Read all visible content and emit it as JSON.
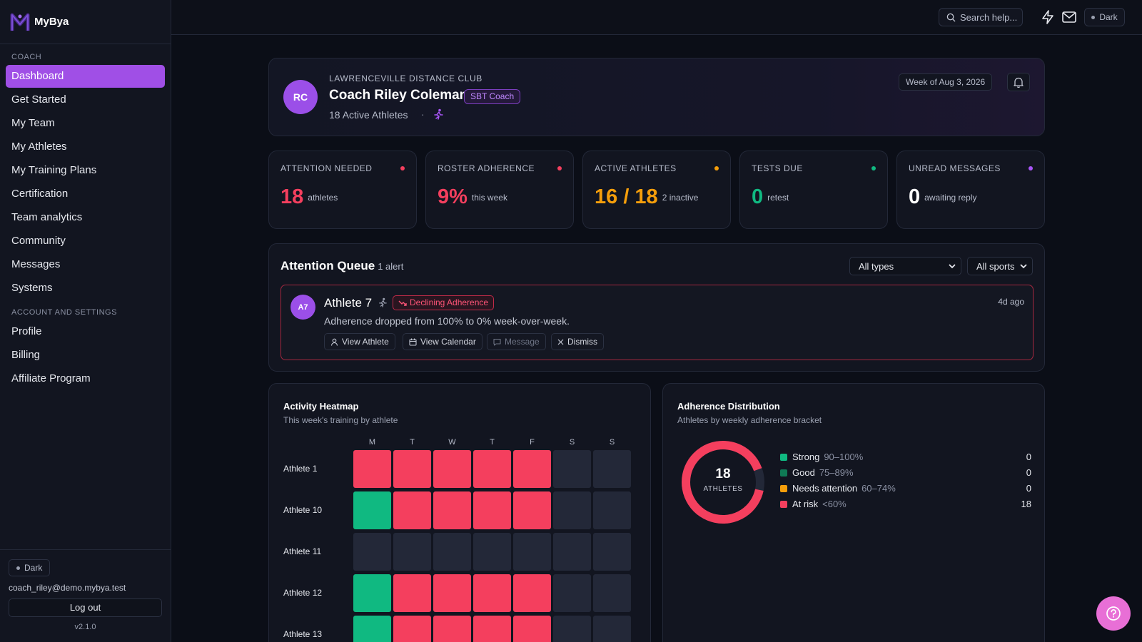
{
  "brand": {
    "name": "MyBya"
  },
  "sidebar": {
    "coach_label": "COACH",
    "coach_items": [
      "Dashboard",
      "Get Started",
      "My Team",
      "My Athletes",
      "My Training Plans",
      "Certification",
      "Team analytics",
      "Community",
      "Messages",
      "Systems"
    ],
    "active_item": "Dashboard",
    "account_label": "ACCOUNT AND SETTINGS",
    "account_items": [
      "Profile",
      "Billing",
      "Affiliate Program"
    ],
    "theme": "Dark",
    "email": "coach_riley@demo.mybya.test",
    "logout_label": "Log out",
    "version": "v2.1.0"
  },
  "topbar": {
    "search_placeholder": "Search help...",
    "theme": "Dark"
  },
  "profile": {
    "initials": "RC",
    "club": "LAWRENCEVILLE DISTANCE CLUB",
    "name": "Coach Riley Coleman",
    "badge": "SBT Coach",
    "active_athletes": "18 Active Athletes",
    "separator": "·",
    "week": "Week of Aug 3, 2026"
  },
  "stats": [
    {
      "label": "ATTENTION NEEDED",
      "value": "18",
      "suffix": "athletes",
      "color": "#f43f5e"
    },
    {
      "label": "ROSTER ADHERENCE",
      "value": "9%",
      "suffix": "this week",
      "color": "#f43f5e"
    },
    {
      "label": "ACTIVE ATHLETES",
      "value": "16 / 18",
      "suffix": "2 inactive",
      "color": "#f59e0b"
    },
    {
      "label": "TESTS DUE",
      "value": "0",
      "suffix": "retest",
      "color": "#10b981"
    },
    {
      "label": "UNREAD MESSAGES",
      "value": "0",
      "suffix": "awaiting reply",
      "color": "#ffffff",
      "dot_color": "#a855f7"
    }
  ],
  "queue": {
    "title": "Attention Queue",
    "count": "1 alert",
    "type_filter": "All types",
    "sport_filter": "All sports",
    "alert": {
      "initials": "A7",
      "name": "Athlete 7",
      "tag": "Declining Adherence",
      "time": "4d ago",
      "description": "Adherence dropped from 100% to 0% week-over-week.",
      "actions": {
        "view_athlete": "View Athlete",
        "view_calendar": "View Calendar",
        "message": "Message",
        "dismiss": "Dismiss"
      }
    }
  },
  "heatmap": {
    "title": "Activity Heatmap",
    "subtitle": "This week's training by athlete",
    "days": [
      "M",
      "T",
      "W",
      "T",
      "F",
      "S",
      "S"
    ],
    "colors": {
      "done": "#10b981",
      "missed": "#f43f5e",
      "none": "#232838"
    },
    "rows": [
      {
        "athlete": "Athlete 1",
        "cells": [
          "missed",
          "missed",
          "missed",
          "missed",
          "missed",
          "none",
          "none"
        ]
      },
      {
        "athlete": "Athlete 10",
        "cells": [
          "done",
          "missed",
          "missed",
          "missed",
          "missed",
          "none",
          "none"
        ]
      },
      {
        "athlete": "Athlete 11",
        "cells": [
          "none",
          "none",
          "none",
          "none",
          "none",
          "none",
          "none"
        ]
      },
      {
        "athlete": "Athlete 12",
        "cells": [
          "done",
          "missed",
          "missed",
          "missed",
          "missed",
          "none",
          "none"
        ]
      },
      {
        "athlete": "Athlete 13",
        "cells": [
          "done",
          "missed",
          "missed",
          "missed",
          "missed",
          "none",
          "none"
        ]
      }
    ]
  },
  "distribution": {
    "title": "Adherence Distribution",
    "subtitle": "Athletes by weekly adherence bracket",
    "total": "18",
    "total_label": "ATHLETES",
    "brackets": [
      {
        "name": "Strong",
        "range": "90–100%",
        "value": "0",
        "color": "#10b981"
      },
      {
        "name": "Good",
        "range": "75–89%",
        "value": "0",
        "color": "#0f7a55"
      },
      {
        "name": "Needs attention",
        "range": "60–74%",
        "value": "0",
        "color": "#f59e0b"
      },
      {
        "name": "At risk",
        "range": "<60%",
        "value": "18",
        "color": "#f43f5e"
      }
    ]
  }
}
